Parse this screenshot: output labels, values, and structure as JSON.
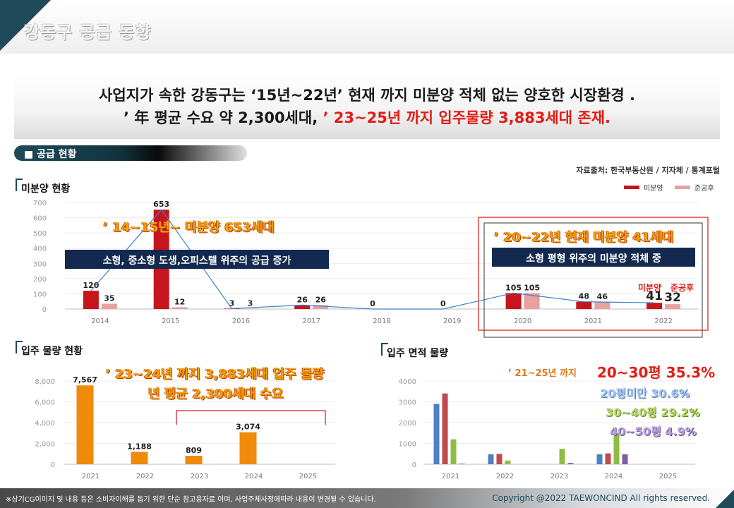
{
  "page": {
    "title": "강동구 공급 동향",
    "headline_line1": "사업지가 속한 강동구는 ‘15년~22년’ 현재 까지 미분양 적체 없는 양호한 시장환경 .",
    "headline_line2_a": "’ 年 평균 수요 약 2,300세대,",
    "headline_line2_b": "’ 23~25년 까지 입주물량 3,883세대 존재.",
    "section_label": "■ 공급 현황",
    "source": "자료출처: 한국부동산원 / 지자체 / 통계포털",
    "footer_note": "※상기CG이미지 및 내용 등은 소비자이해를 돕기 위한 단순 참고용자료 이며, 사업주체사정에따라 내용이 변경될 수 있습니다.",
    "footer_copyright": "Copyright @2022 TAEWONCIND All rights reserved."
  },
  "colors": {
    "dark_teal": "#1f4a5a",
    "unsold": "#c6151d",
    "completed_unsold": "#e8a0a0",
    "trend_line": "#3e83c3",
    "move_in": "#f08a0b",
    "area_blue": "#4f7fc4",
    "area_red": "#c14a4a",
    "area_green": "#8fbc44",
    "area_purple": "#7a5fa6"
  },
  "chart_data": [
    {
      "id": "unsold",
      "type": "bar",
      "title": "미분양 현황",
      "categories": [
        "2014",
        "2015",
        "2016",
        "2017",
        "2018",
        "2019",
        "2020",
        "2021",
        "2022"
      ],
      "series": [
        {
          "name": "미분양",
          "values": [
            120,
            653,
            3,
            26,
            0,
            0,
            105,
            48,
            41
          ]
        },
        {
          "name": "준공후",
          "values": [
            35,
            12,
            3,
            26,
            0,
            0,
            105,
            46,
            32
          ]
        }
      ],
      "label_series": [
        [
          "120",
          "653",
          "3",
          "26",
          "0",
          "0",
          "105",
          "48",
          "41"
        ],
        [
          "35",
          "12",
          "3",
          "26",
          "",
          "",
          "105",
          "46",
          "32"
        ]
      ],
      "yticks": [
        "0",
        "100",
        "200",
        "300",
        "400",
        "500",
        "600",
        "700"
      ],
      "ylim": [
        0,
        700
      ],
      "legend": {
        "placement": "top-right",
        "items": [
          "미분양",
          "준공후"
        ]
      },
      "annotations": {
        "callout_left": "’ 14~15년~ 미분양 653세대",
        "box_left": "소형, 중소형 도생,오피스텔  위주의 공급 증가",
        "callout_right": "’ 20~22년 현재 미분양 41세대",
        "box_right": "소형 평형 위주의 미분양 적체 중",
        "label_unsold": "미분양",
        "label_completed": "준공후"
      }
    },
    {
      "id": "move_in",
      "type": "bar",
      "title": "입주 물량 현황",
      "categories": [
        "2021",
        "2022",
        "2023",
        "2024",
        "2025"
      ],
      "values": [
        7567,
        1188,
        809,
        3074,
        0
      ],
      "value_labels": [
        "7,567",
        "1,188",
        "809",
        "3,074",
        ""
      ],
      "yticks": [
        "0",
        "2,000",
        "4,000",
        "6,000",
        "8,000"
      ],
      "ylim": [
        0,
        8800
      ],
      "annotations": {
        "line1": "’ 23~24년 까지 3,883세대 입주 물량",
        "line2": "년 평균 2,300세대 수요"
      }
    },
    {
      "id": "area",
      "type": "bar",
      "title": "입주 면적 물량",
      "categories": [
        "2021",
        "2022",
        "2023",
        "2024",
        "2025"
      ],
      "series": [
        {
          "name": "20평미만",
          "values": [
            2900,
            480,
            0,
            480,
            0
          ]
        },
        {
          "name": "20~30평",
          "values": [
            3400,
            500,
            0,
            520,
            0
          ]
        },
        {
          "name": "30~40평",
          "values": [
            1200,
            180,
            740,
            1500,
            0
          ]
        },
        {
          "name": "40~50평",
          "values": [
            30,
            0,
            60,
            480,
            0
          ]
        }
      ],
      "yticks": [
        "0",
        "1000",
        "2000",
        "3000",
        "4000"
      ],
      "ylim": [
        0,
        4000
      ],
      "annotations": {
        "prefix": "’ 21~25년 까지",
        "main": "20~30평 35.3%",
        "r2": "20평미만 30.6%",
        "r3": "30~40평 29.2%",
        "r4": "40~50평 4.9%"
      }
    }
  ]
}
